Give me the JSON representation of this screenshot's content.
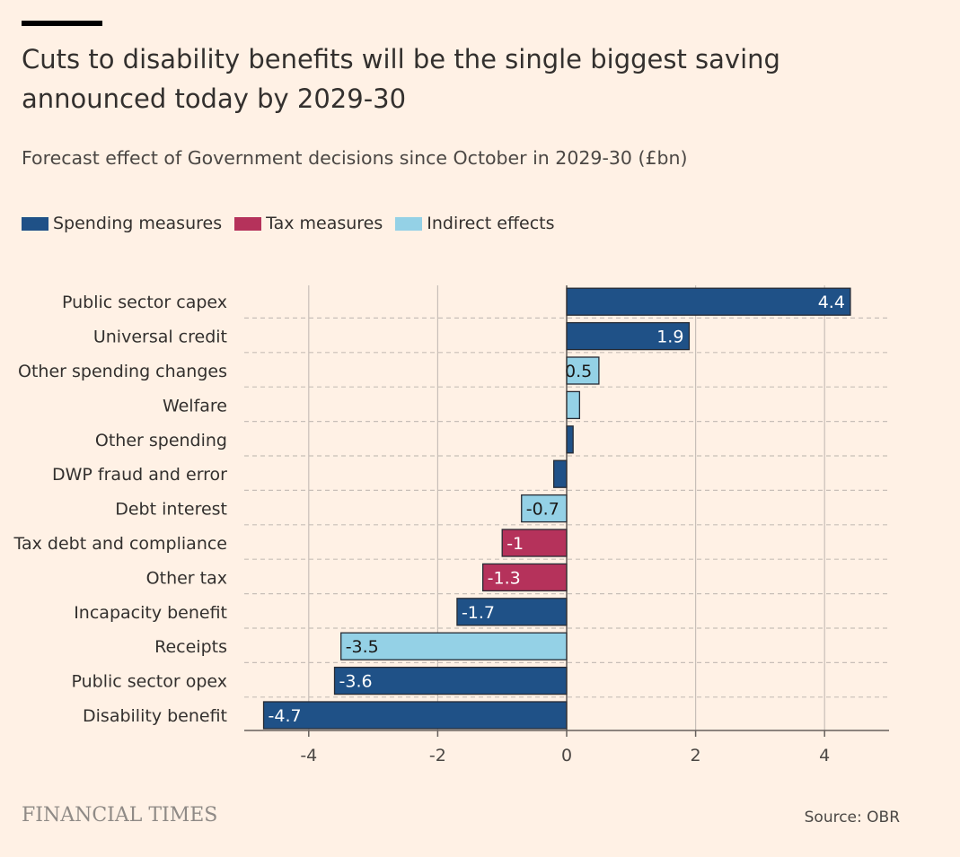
{
  "header": {
    "title": "Cuts to disability benefits will be the single biggest saving announced today by 2029-30",
    "subtitle": "Forecast effect of Government decisions since October in 2029-30 (£bn)"
  },
  "legend": [
    {
      "label": "Spending measures",
      "color": "#1f5187"
    },
    {
      "label": "Tax measures",
      "color": "#b5325b"
    },
    {
      "label": "Indirect effects",
      "color": "#94d1e6"
    }
  ],
  "chart_data": {
    "type": "bar",
    "orientation": "horizontal",
    "title": "Cuts to disability benefits will be the single biggest saving announced today by 2029-30",
    "subtitle": "Forecast effect of Government decisions since October in 2029-30 (£bn)",
    "xlim": [
      -4.9,
      5
    ],
    "xticks": [
      -4,
      -2,
      0,
      2,
      4
    ],
    "xticklabels": [
      "-4",
      "-2",
      "0",
      "2",
      "4"
    ],
    "grid": true,
    "bars": [
      {
        "label": "Public sector capex",
        "value": 4.4,
        "category": "Spending measures",
        "data_label": "4.4"
      },
      {
        "label": "Universal credit",
        "value": 1.9,
        "category": "Spending measures",
        "data_label": "1.9"
      },
      {
        "label": "Other spending changes",
        "value": 0.5,
        "category": "Indirect effects",
        "data_label": "0.5"
      },
      {
        "label": "Welfare",
        "value": 0.2,
        "category": "Indirect effects",
        "data_label": ""
      },
      {
        "label": "Other spending",
        "value": 0.1,
        "category": "Spending measures",
        "data_label": ""
      },
      {
        "label": "DWP fraud and error",
        "value": -0.2,
        "category": "Spending measures",
        "data_label": ""
      },
      {
        "label": "Debt interest",
        "value": -0.7,
        "category": "Indirect effects",
        "data_label": "-0.7"
      },
      {
        "label": "Tax debt and compliance",
        "value": -1.0,
        "category": "Tax measures",
        "data_label": "-1"
      },
      {
        "label": "Other tax",
        "value": -1.3,
        "category": "Tax measures",
        "data_label": "-1.3"
      },
      {
        "label": "Incapacity benefit",
        "value": -1.7,
        "category": "Spending measures",
        "data_label": "-1.7"
      },
      {
        "label": "Receipts",
        "value": -3.5,
        "category": "Indirect effects",
        "data_label": "-3.5"
      },
      {
        "label": "Public sector opex",
        "value": -3.6,
        "category": "Spending measures",
        "data_label": "-3.6"
      },
      {
        "label": "Disability benefit",
        "value": -4.7,
        "category": "Spending measures",
        "data_label": "-4.7"
      }
    ]
  },
  "footer": {
    "brand": "FINANCIAL TIMES",
    "source": "Source: OBR"
  }
}
